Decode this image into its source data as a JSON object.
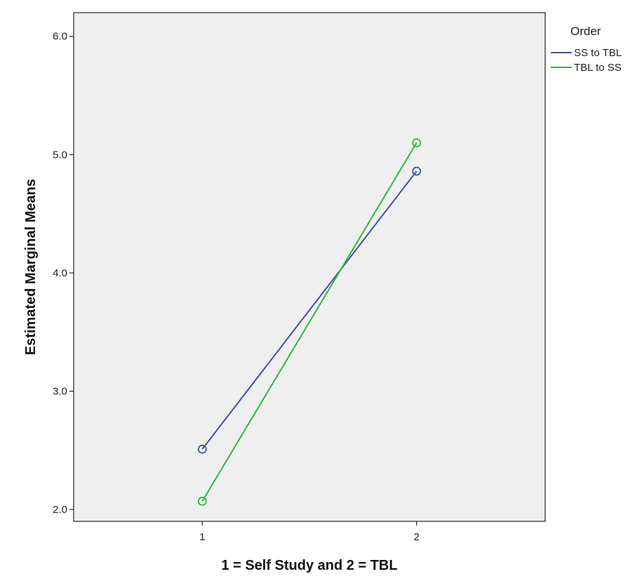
{
  "chart_data": {
    "type": "line",
    "title": "",
    "xlabel": "1 = Self Study and 2 = TBL",
    "ylabel": "Estimated Marginal Means",
    "categories": [
      "1",
      "2"
    ],
    "x": [
      1,
      2
    ],
    "xlim": [
      0.4,
      2.6
    ],
    "ylim": [
      1.9,
      6.2
    ],
    "yticks": [
      2.0,
      3.0,
      4.0,
      5.0,
      6.0
    ],
    "ytick_labels": [
      "2.0",
      "3.0",
      "4.0",
      "5.0",
      "6.0"
    ],
    "grid": false,
    "legend": {
      "title": "Order",
      "placement": "right-top-outside"
    },
    "series": [
      {
        "name": "SS to TBL",
        "values": [
          2.51,
          4.86
        ],
        "color": "#3f51a8",
        "marker": "circle-open"
      },
      {
        "name": "TBL to SS",
        "values": [
          2.07,
          5.1
        ],
        "color": "#2db83d",
        "marker": "circle-open"
      }
    ],
    "plot_background": "#efefef"
  }
}
